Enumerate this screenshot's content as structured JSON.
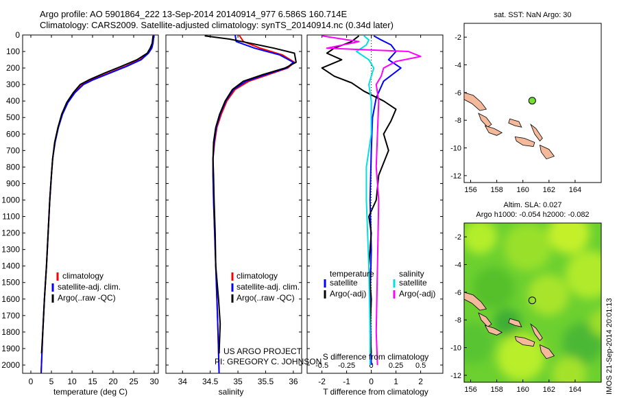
{
  "header": {
    "line1": "Argo profile: AO 5901864_222 13-Sep-2014 20140914_977 6.586S 160.714E",
    "line2": "Climatology: CARS2009. Satellite-adjusted climatology: synTS_20140914.nc (0.34d later)"
  },
  "colors": {
    "climatology": "#ff0000",
    "satellite": "#0000ff",
    "argo": "#000000",
    "salinity_sat": "#00e0e0",
    "salinity_argo": "#ff00ff",
    "land": "#f4b99a",
    "marker": "#77dd33"
  },
  "chart_data": [
    {
      "id": "temperature",
      "type": "line",
      "xlabel": "temperature (deg C)",
      "xlim": [
        -2,
        31
      ],
      "ylim": [
        2050,
        0
      ],
      "xticks": [
        0,
        5,
        10,
        15,
        20,
        25,
        30
      ],
      "yticks": [
        0,
        100,
        200,
        300,
        400,
        500,
        600,
        700,
        800,
        900,
        1000,
        1100,
        1200,
        1300,
        1400,
        1500,
        1600,
        1700,
        1800,
        1900,
        2000
      ],
      "legend": [
        "climatology",
        "satellite-adj. clim.",
        "Argo(..raw -QC)"
      ],
      "series": [
        {
          "name": "climatology",
          "color": "#ff0000",
          "points": [
            [
              29.8,
              0
            ],
            [
              29.6,
              50
            ],
            [
              29.3,
              80
            ],
            [
              28.5,
              110
            ],
            [
              26.5,
              150
            ],
            [
              23,
              190
            ],
            [
              19,
              230
            ],
            [
              15,
              270
            ],
            [
              12.5,
              300
            ],
            [
              10.5,
              350
            ],
            [
              8.8,
              410
            ],
            [
              7.6,
              480
            ],
            [
              6.6,
              560
            ],
            [
              5.8,
              650
            ],
            [
              5.3,
              750
            ],
            [
              5.0,
              850
            ],
            [
              4.6,
              1000
            ],
            [
              4.2,
              1200
            ],
            [
              3.8,
              1400
            ],
            [
              3.3,
              1600
            ],
            [
              2.9,
              1800
            ],
            [
              2.5,
              2050
            ]
          ]
        },
        {
          "name": "satellite-adj. clim.",
          "color": "#0000ff",
          "points": [
            [
              29.9,
              0
            ],
            [
              29.7,
              50
            ],
            [
              29.4,
              80
            ],
            [
              28.6,
              110
            ],
            [
              26.8,
              150
            ],
            [
              23.3,
              190
            ],
            [
              19.3,
              230
            ],
            [
              15.3,
              270
            ],
            [
              12.8,
              300
            ],
            [
              10.7,
              350
            ],
            [
              9.0,
              410
            ],
            [
              7.7,
              480
            ],
            [
              6.7,
              560
            ],
            [
              5.9,
              650
            ],
            [
              5.3,
              750
            ],
            [
              5.0,
              850
            ],
            [
              4.6,
              1000
            ],
            [
              4.2,
              1200
            ],
            [
              3.8,
              1400
            ],
            [
              3.3,
              1600
            ],
            [
              2.9,
              1800
            ],
            [
              2.5,
              2050
            ]
          ]
        },
        {
          "name": "Argo(..raw -QC)",
          "color": "#000000",
          "points": [
            [
              29.7,
              5
            ],
            [
              29.5,
              50
            ],
            [
              29.0,
              80
            ],
            [
              28.3,
              110
            ],
            [
              25.8,
              150
            ],
            [
              22.0,
              190
            ],
            [
              18.0,
              230
            ],
            [
              14.3,
              270
            ],
            [
              12.0,
              300
            ],
            [
              10.3,
              350
            ],
            [
              8.7,
              410
            ],
            [
              7.5,
              480
            ],
            [
              6.6,
              560
            ],
            [
              5.8,
              650
            ],
            [
              5.3,
              750
            ],
            [
              5.0,
              850
            ],
            [
              4.6,
              1000
            ],
            [
              4.2,
              1200
            ],
            [
              3.8,
              1400
            ],
            [
              3.3,
              1600
            ],
            [
              2.9,
              1800
            ],
            [
              2.6,
              1930
            ]
          ]
        }
      ]
    },
    {
      "id": "salinity",
      "type": "line",
      "xlabel": "salinity",
      "xlim": [
        33.7,
        36.15
      ],
      "ylim": [
        2050,
        0
      ],
      "xticks": [
        34,
        34.5,
        35,
        35.5,
        36
      ],
      "xticklabels": [
        "34",
        "34.5",
        "35",
        "35.5",
        "36"
      ],
      "legend": [
        "climatology",
        "satellite-adj. clim.",
        "Argo(..raw -QC)"
      ],
      "series": [
        {
          "name": "climatology",
          "color": "#ff0000",
          "points": [
            [
              35.02,
              0
            ],
            [
              35.1,
              40
            ],
            [
              35.4,
              80
            ],
            [
              35.8,
              120
            ],
            [
              36.02,
              165
            ],
            [
              35.9,
              200
            ],
            [
              35.55,
              240
            ],
            [
              35.2,
              280
            ],
            [
              34.95,
              330
            ],
            [
              34.8,
              400
            ],
            [
              34.7,
              480
            ],
            [
              34.62,
              560
            ],
            [
              34.58,
              650
            ],
            [
              34.55,
              750
            ],
            [
              34.55,
              850
            ],
            [
              34.56,
              1000
            ],
            [
              34.58,
              1200
            ],
            [
              34.6,
              1400
            ],
            [
              34.62,
              1600
            ],
            [
              34.64,
              1800
            ],
            [
              34.66,
              2050
            ]
          ]
        },
        {
          "name": "satellite-adj. clim.",
          "color": "#0000ff",
          "points": [
            [
              34.95,
              0
            ],
            [
              34.97,
              40
            ],
            [
              35.3,
              80
            ],
            [
              35.75,
              120
            ],
            [
              36.0,
              165
            ],
            [
              35.88,
              200
            ],
            [
              35.5,
              240
            ],
            [
              35.15,
              280
            ],
            [
              34.92,
              330
            ],
            [
              34.78,
              400
            ],
            [
              34.68,
              480
            ],
            [
              34.61,
              560
            ],
            [
              34.57,
              650
            ],
            [
              34.55,
              750
            ],
            [
              34.55,
              850
            ],
            [
              34.56,
              1000
            ],
            [
              34.58,
              1200
            ],
            [
              34.6,
              1400
            ],
            [
              34.62,
              1600
            ],
            [
              34.64,
              1800
            ],
            [
              34.66,
              2050
            ]
          ]
        },
        {
          "name": "Argo(..raw -QC)",
          "color": "#000000",
          "points": [
            [
              34.4,
              5
            ],
            [
              34.85,
              25
            ],
            [
              35.15,
              45
            ],
            [
              35.65,
              80
            ],
            [
              36.02,
              110
            ],
            [
              36.05,
              165
            ],
            [
              35.85,
              200
            ],
            [
              35.45,
              240
            ],
            [
              35.1,
              280
            ],
            [
              34.9,
              330
            ],
            [
              34.77,
              400
            ],
            [
              34.67,
              480
            ],
            [
              34.6,
              560
            ],
            [
              34.56,
              650
            ],
            [
              34.55,
              750
            ],
            [
              34.56,
              850
            ],
            [
              34.57,
              1000
            ],
            [
              34.59,
              1200
            ],
            [
              34.6,
              1400
            ],
            [
              34.65,
              1600
            ],
            [
              34.68,
              1750
            ],
            [
              34.66,
              1930
            ]
          ]
        }
      ]
    },
    {
      "id": "difference",
      "type": "line",
      "xlabel_top": "S difference from climatology",
      "xlabel_bottom": "T difference from climatology",
      "xlim": [
        -2.6,
        2.9
      ],
      "ylim": [
        2050,
        0
      ],
      "xticks": [
        -2,
        -1,
        0,
        1,
        2
      ],
      "xticklabels": [
        "-2",
        "-1",
        "0",
        "1",
        "2"
      ],
      "sticks": [
        -0.5,
        -0.25,
        0,
        0.25,
        0.5
      ],
      "sticklabels": [
        "-0.5",
        "-0.25",
        "0",
        "0.25",
        "0.5"
      ],
      "legend_temperature_title": "temperature",
      "legend_salinity_title": "salinity",
      "legend_temperature": [
        "satellite",
        "Argo(-adj)"
      ],
      "legend_salinity": [
        "satellite",
        "Argo(-adj)"
      ],
      "series": [
        {
          "name": "T satellite",
          "color": "#0000ff",
          "points": [
            [
              0.1,
              5
            ],
            [
              0.4,
              30
            ],
            [
              0.8,
              60
            ],
            [
              1.0,
              100
            ],
            [
              0.7,
              150
            ],
            [
              1.2,
              200
            ],
            [
              0.5,
              280
            ],
            [
              0.2,
              380
            ],
            [
              0.05,
              500
            ],
            [
              0.0,
              700
            ],
            [
              -0.05,
              1000
            ],
            [
              0.0,
              1300
            ],
            [
              -0.05,
              1600
            ],
            [
              0.0,
              2000
            ]
          ]
        },
        {
          "name": "T Argo(-adj)",
          "color": "#000000",
          "points": [
            [
              -0.5,
              5
            ],
            [
              -0.8,
              40
            ],
            [
              -1.5,
              80
            ],
            [
              -1.8,
              110
            ],
            [
              -1.2,
              150
            ],
            [
              -2.0,
              200
            ],
            [
              -1.5,
              250
            ],
            [
              -0.8,
              290
            ],
            [
              -0.3,
              340
            ],
            [
              0.5,
              400
            ],
            [
              1.0,
              450
            ],
            [
              0.8,
              520
            ],
            [
              0.5,
              600
            ],
            [
              0.7,
              700
            ],
            [
              0.3,
              850
            ],
            [
              0.2,
              1000
            ],
            [
              -0.1,
              1100
            ],
            [
              0.0,
              1200
            ],
            [
              -0.1,
              1400
            ],
            [
              0.0,
              1600
            ],
            [
              -0.05,
              1800
            ],
            [
              0.0,
              1930
            ]
          ]
        },
        {
          "name": "S satellite",
          "color": "#00e0e0",
          "points": [
            [
              -0.3,
              5
            ],
            [
              -0.1,
              30
            ],
            [
              -0.2,
              60
            ],
            [
              -0.6,
              100
            ],
            [
              -0.1,
              150
            ],
            [
              0.1,
              200
            ],
            [
              -0.1,
              300
            ],
            [
              0.0,
              400
            ],
            [
              0.0,
              600
            ],
            [
              -0.2,
              800
            ],
            [
              -0.2,
              1000
            ],
            [
              -0.1,
              1400
            ],
            [
              -0.05,
              1800
            ],
            [
              -0.05,
              2000
            ]
          ]
        },
        {
          "name": "S Argo(-adj)",
          "color": "#ff00ff",
          "points": [
            [
              -2.0,
              5
            ],
            [
              -0.5,
              40
            ],
            [
              -1.8,
              80
            ],
            [
              1.5,
              100
            ],
            [
              2.0,
              130
            ],
            [
              1.0,
              160
            ],
            [
              0.5,
              200
            ],
            [
              0.4,
              250
            ],
            [
              0.2,
              300
            ],
            [
              0.3,
              400
            ],
            [
              0.25,
              600
            ],
            [
              0.2,
              800
            ],
            [
              0.3,
              1000
            ],
            [
              0.25,
              1400
            ],
            [
              0.2,
              1800
            ],
            [
              0.25,
              2000
            ]
          ]
        }
      ]
    },
    {
      "id": "sst_map",
      "type": "scatter",
      "title": "sat. SST: NaN Argo: 30",
      "xlim": [
        155.5,
        166
      ],
      "ylim": [
        -12.5,
        -1
      ],
      "xticks": [
        156,
        158,
        160,
        162,
        164
      ],
      "yticks": [
        -2,
        -4,
        -6,
        -8,
        -10,
        -12
      ],
      "argo_point": [
        160.714,
        -6.586
      ]
    },
    {
      "id": "sla_map",
      "type": "heatmap",
      "title": "Altim. SLA: 0.027",
      "subtitle": "Argo h1000: -0.054 h2000: -0.082",
      "xlim": [
        155.5,
        166
      ],
      "ylim": [
        -12.5,
        -1
      ],
      "xticks": [
        156,
        158,
        160,
        162,
        164
      ],
      "yticks": [
        -2,
        -4,
        -6,
        -8,
        -10,
        -12
      ],
      "argo_point": [
        160.714,
        -6.586
      ]
    }
  ],
  "credits": {
    "project": "US ARGO PROJECT",
    "pi": "PI: GREGORY C. JOHNSON",
    "stamp": "IMOS 21-Sep-2014 20:01:13"
  }
}
